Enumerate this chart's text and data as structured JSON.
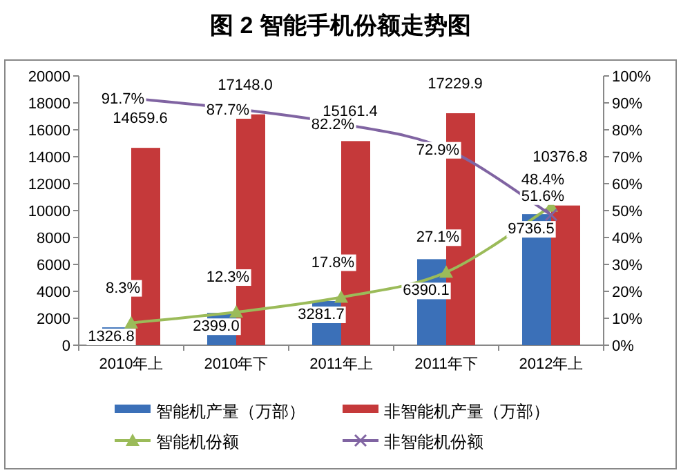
{
  "chart_data": {
    "type": "bar",
    "title": "图 2  智能手机份额走势图",
    "categories": [
      "2010年上",
      "2010年下",
      "2011年上",
      "2011年下",
      "2012年上"
    ],
    "series": [
      {
        "name": "智能机产量（万部）",
        "color": "#3b70b8",
        "values": [
          1326.8,
          2399.0,
          3281.7,
          6390.1,
          9736.5
        ],
        "value_labels": [
          "1326.8",
          "2399.0",
          "3281.7",
          "6390.1",
          "9736.5"
        ]
      },
      {
        "name": "非智能机产量（万部）",
        "color": "#c5393a",
        "values": [
          14659.6,
          17148.0,
          15161.4,
          17229.9,
          10376.8
        ],
        "value_labels": [
          "14659.6",
          "17148.0",
          "15161.4",
          "17229.9",
          "10376.8"
        ]
      },
      {
        "name": "智能机份额",
        "type": "line",
        "axis": "y2",
        "marker": "triangle",
        "color": "#9bbb59",
        "values": [
          8.3,
          12.3,
          17.8,
          27.1,
          51.6
        ],
        "value_labels": [
          "8.3%",
          "12.3%",
          "17.8%",
          "27.1%",
          "51.6%"
        ]
      },
      {
        "name": "非智能机份额",
        "type": "line",
        "axis": "y2",
        "marker": "cross",
        "color": "#8064a2",
        "values": [
          91.7,
          87.7,
          82.2,
          72.9,
          48.4
        ],
        "value_labels": [
          "91.7%",
          "87.7%",
          "82.2%",
          "72.9%",
          "48.4%"
        ]
      }
    ],
    "ylim": [
      0,
      20000
    ],
    "yticks": [
      0,
      2000,
      4000,
      6000,
      8000,
      10000,
      12000,
      14000,
      16000,
      18000,
      20000
    ],
    "y2lim": [
      0,
      100
    ],
    "y2ticks": [
      {
        "value": 0,
        "label": "0%"
      },
      {
        "value": 10,
        "label": "10%"
      },
      {
        "value": 20,
        "label": "20%"
      },
      {
        "value": 30,
        "label": "30%"
      },
      {
        "value": 40,
        "label": "40%"
      },
      {
        "value": 50,
        "label": "50%"
      },
      {
        "value": 60,
        "label": "60%"
      },
      {
        "value": 70,
        "label": "70%"
      },
      {
        "value": 80,
        "label": "80%"
      },
      {
        "value": 90,
        "label": "90%"
      },
      {
        "value": 100,
        "label": "100%"
      }
    ],
    "grid": false,
    "legend": "bottom"
  }
}
